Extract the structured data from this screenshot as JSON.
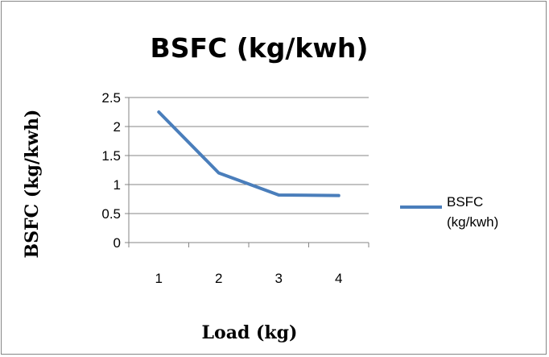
{
  "chart_data": {
    "type": "line",
    "title": "BSFC (kg/kwh)",
    "xlabel": "Load (kg)",
    "ylabel": "BSFC (kg/kwh)",
    "categories": [
      "1",
      "2",
      "3",
      "4"
    ],
    "series": [
      {
        "name": "BSFC (kg/kwh)",
        "values": [
          2.25,
          1.2,
          0.82,
          0.81
        ],
        "color": "#4a7ebb"
      }
    ],
    "ylim": [
      0,
      2.5
    ],
    "yticks": [
      "0",
      "0.5",
      "1",
      "1.5",
      "2",
      "2.5"
    ],
    "grid": true,
    "legend": "right"
  }
}
